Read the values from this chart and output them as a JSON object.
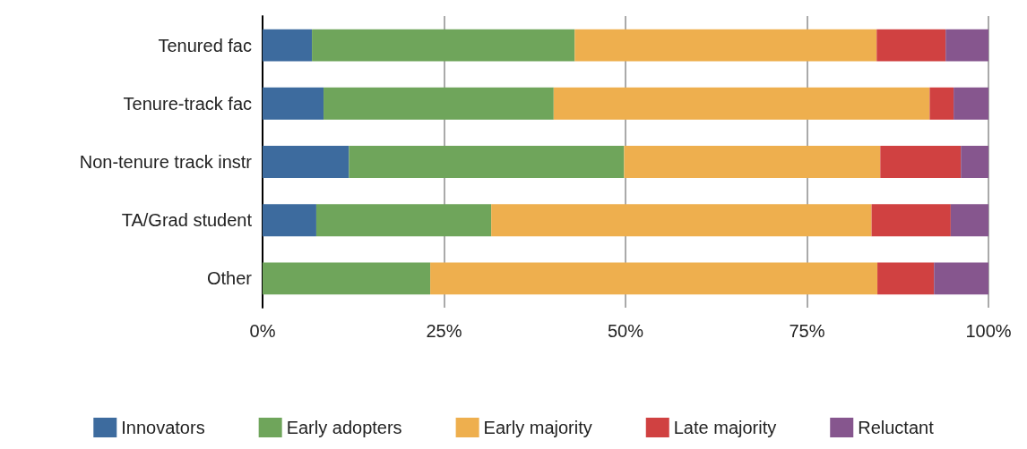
{
  "chart_data": {
    "type": "bar",
    "orientation": "horizontal",
    "stacked": true,
    "categories": [
      "Tenured fac",
      "Tenure-track fac",
      "Non-tenure track instr",
      "TA/Grad student",
      "Other"
    ],
    "series": [
      {
        "name": "Innovators",
        "color": "#3d6b9e",
        "values": [
          6.8,
          8.4,
          11.9,
          7.4,
          0
        ]
      },
      {
        "name": "Early adopters",
        "color": "#6fa55b",
        "values": [
          36.2,
          31.7,
          37.9,
          24.1,
          23.1
        ]
      },
      {
        "name": "Early majority",
        "color": "#eeaf4e",
        "values": [
          41.6,
          51.8,
          35.3,
          52.4,
          61.6
        ]
      },
      {
        "name": "Late majority",
        "color": "#d04141",
        "values": [
          9.5,
          3.3,
          11.1,
          10.9,
          7.8
        ]
      },
      {
        "name": "Reluctant",
        "color": "#86568e",
        "values": [
          5.9,
          4.8,
          3.8,
          5.2,
          7.5
        ]
      }
    ],
    "xlim": [
      0,
      100
    ],
    "xticks": [
      {
        "value": 0,
        "label": "0%"
      },
      {
        "value": 25,
        "label": "25%"
      },
      {
        "value": 50,
        "label": "50%"
      },
      {
        "value": 75,
        "label": "75%"
      },
      {
        "value": 100,
        "label": "100%"
      }
    ],
    "grid": "x",
    "legend": "bottom"
  }
}
